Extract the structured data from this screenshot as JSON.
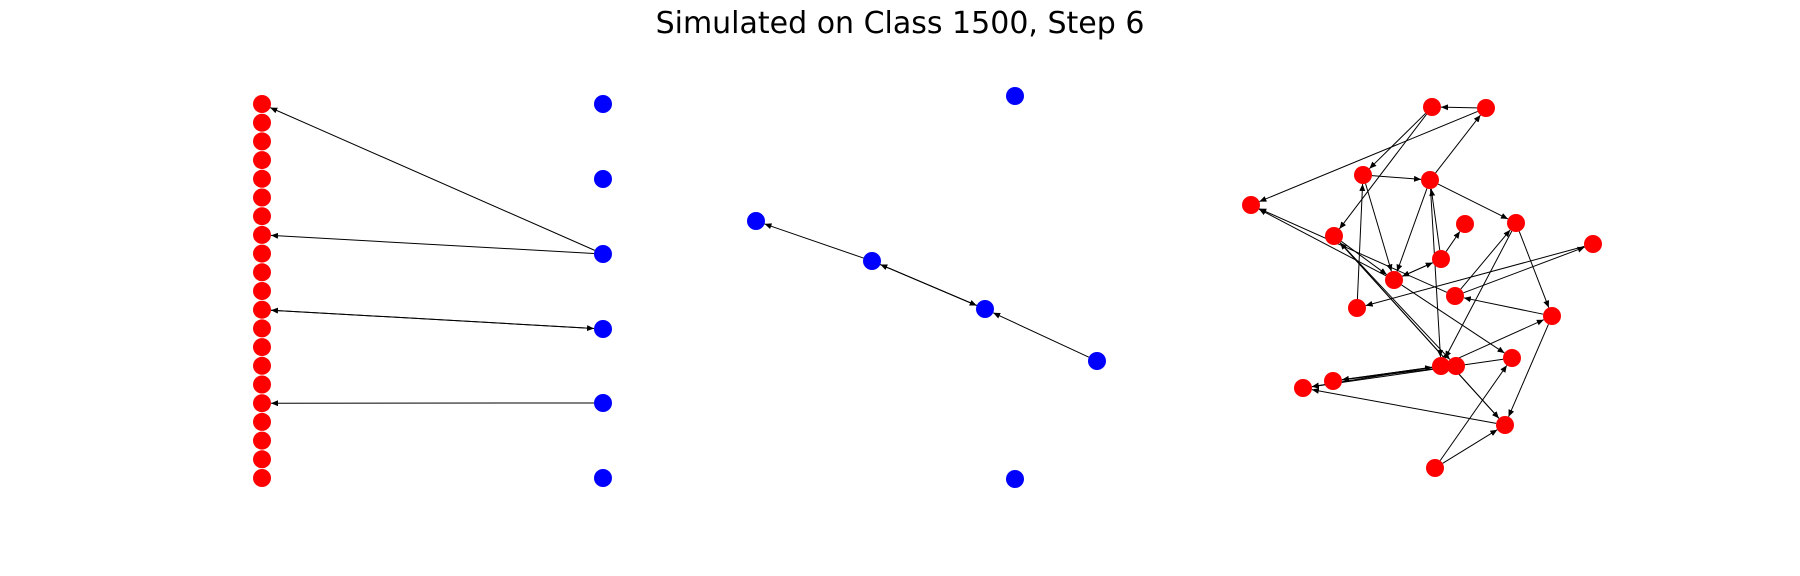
{
  "title": "Simulated on Class 1500, Step 6",
  "colors": {
    "panel_1_nodes": "#ff0000",
    "panel_1_right_nodes": "#0000ff",
    "panel_2_nodes": "#0000ff",
    "panel_3_nodes": "#ff0000",
    "edge": "#000000"
  },
  "panels": [
    {
      "name": "bipartite-graph",
      "nodes": [
        {
          "id": "r1",
          "color": "red"
        },
        {
          "id": "r2",
          "color": "red"
        },
        {
          "id": "r3",
          "color": "red"
        },
        {
          "id": "r4",
          "color": "red"
        },
        {
          "id": "r5",
          "color": "red"
        },
        {
          "id": "r6",
          "color": "red"
        },
        {
          "id": "r7",
          "color": "red"
        },
        {
          "id": "r8",
          "color": "red"
        },
        {
          "id": "r9",
          "color": "red"
        },
        {
          "id": "r10",
          "color": "red"
        },
        {
          "id": "r11",
          "color": "red"
        },
        {
          "id": "r12",
          "color": "red"
        },
        {
          "id": "r13",
          "color": "red"
        },
        {
          "id": "r14",
          "color": "red"
        },
        {
          "id": "r15",
          "color": "red"
        },
        {
          "id": "r16",
          "color": "red"
        },
        {
          "id": "r17",
          "color": "red"
        },
        {
          "id": "r18",
          "color": "red"
        },
        {
          "id": "r19",
          "color": "red"
        },
        {
          "id": "r20",
          "color": "red"
        },
        {
          "id": "r21",
          "color": "red"
        },
        {
          "id": "b1",
          "color": "blue"
        },
        {
          "id": "b2",
          "color": "blue"
        },
        {
          "id": "b3",
          "color": "blue"
        },
        {
          "id": "b4",
          "color": "blue"
        },
        {
          "id": "b5",
          "color": "blue"
        },
        {
          "id": "b6",
          "color": "blue"
        }
      ],
      "edges": [
        {
          "from": "b3",
          "to": "r1"
        },
        {
          "from": "b3",
          "to": "r8"
        },
        {
          "from": "b4",
          "to": "r12"
        },
        {
          "from": "r12",
          "to": "b4"
        },
        {
          "from": "b5",
          "to": "r17"
        }
      ]
    },
    {
      "name": "chain-graph",
      "nodes": [
        {
          "id": "c1",
          "color": "blue"
        },
        {
          "id": "c2",
          "color": "blue"
        },
        {
          "id": "c3",
          "color": "blue"
        },
        {
          "id": "c4",
          "color": "blue"
        },
        {
          "id": "c5",
          "color": "blue"
        },
        {
          "id": "c6",
          "color": "blue"
        }
      ],
      "edges": [
        {
          "from": "c3",
          "to": "c2"
        },
        {
          "from": "c3",
          "to": "c4"
        },
        {
          "from": "c4",
          "to": "c3"
        },
        {
          "from": "c5",
          "to": "c4"
        }
      ]
    },
    {
      "name": "random-graph",
      "nodes": [
        {
          "id": "n1",
          "color": "red"
        },
        {
          "id": "n2",
          "color": "red"
        },
        {
          "id": "n3",
          "color": "red"
        },
        {
          "id": "n4",
          "color": "red"
        },
        {
          "id": "n5",
          "color": "red"
        },
        {
          "id": "n6",
          "color": "red"
        },
        {
          "id": "n7",
          "color": "red"
        },
        {
          "id": "n8",
          "color": "red"
        },
        {
          "id": "n9",
          "color": "red"
        },
        {
          "id": "n10",
          "color": "red"
        },
        {
          "id": "n11",
          "color": "red"
        },
        {
          "id": "n12",
          "color": "red"
        },
        {
          "id": "n13",
          "color": "red"
        },
        {
          "id": "n14",
          "color": "red"
        },
        {
          "id": "n15",
          "color": "red"
        },
        {
          "id": "n16",
          "color": "red"
        },
        {
          "id": "n17",
          "color": "red"
        },
        {
          "id": "n18",
          "color": "red"
        },
        {
          "id": "n19",
          "color": "red"
        },
        {
          "id": "n20",
          "color": "red"
        },
        {
          "id": "n21",
          "color": "red"
        }
      ],
      "edges": [
        {
          "from": "n2",
          "to": "n1"
        },
        {
          "from": "n1",
          "to": "n3"
        },
        {
          "from": "n1",
          "to": "n11"
        },
        {
          "from": "n4",
          "to": "n2"
        },
        {
          "from": "n2",
          "to": "n5"
        },
        {
          "from": "n3",
          "to": "n4"
        },
        {
          "from": "n3",
          "to": "n10"
        },
        {
          "from": "n4",
          "to": "n10"
        },
        {
          "from": "n4",
          "to": "n6"
        },
        {
          "from": "n4",
          "to": "n15"
        },
        {
          "from": "n9",
          "to": "n8"
        },
        {
          "from": "n9",
          "to": "n4"
        },
        {
          "from": "n9",
          "to": "n10"
        },
        {
          "from": "n10",
          "to": "n9"
        },
        {
          "from": "n12",
          "to": "n5"
        },
        {
          "from": "n10",
          "to": "n5"
        },
        {
          "from": "n12",
          "to": "n6"
        },
        {
          "from": "n12",
          "to": "n7"
        },
        {
          "from": "n6",
          "to": "n14"
        },
        {
          "from": "n7",
          "to": "n13"
        },
        {
          "from": "n6",
          "to": "n15"
        },
        {
          "from": "n11",
          "to": "n10"
        },
        {
          "from": "n11",
          "to": "n16"
        },
        {
          "from": "n11",
          "to": "n18"
        },
        {
          "from": "n10",
          "to": "n17"
        },
        {
          "from": "n13",
          "to": "n3"
        },
        {
          "from": "n14",
          "to": "n12"
        },
        {
          "from": "n14",
          "to": "n18"
        },
        {
          "from": "n15",
          "to": "n14"
        },
        {
          "from": "n15",
          "to": "n19"
        },
        {
          "from": "n15",
          "to": "n20"
        },
        {
          "from": "n19",
          "to": "n15"
        },
        {
          "from": "n16",
          "to": "n19"
        },
        {
          "from": "n17",
          "to": "n20"
        },
        {
          "from": "n18",
          "to": "n11"
        },
        {
          "from": "n18",
          "to": "n20"
        },
        {
          "from": "n21",
          "to": "n17"
        },
        {
          "from": "n21",
          "to": "n18"
        }
      ]
    }
  ]
}
